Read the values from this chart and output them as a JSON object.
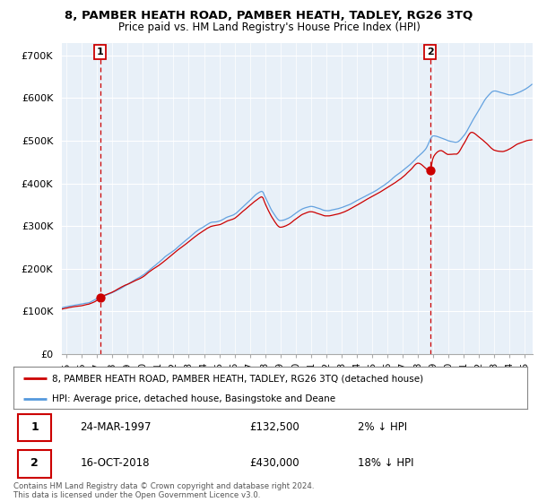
{
  "title": "8, PAMBER HEATH ROAD, PAMBER HEATH, TADLEY, RG26 3TQ",
  "subtitle": "Price paid vs. HM Land Registry's House Price Index (HPI)",
  "ylabel_ticks": [
    "£0",
    "£100K",
    "£200K",
    "£300K",
    "£400K",
    "£500K",
    "£600K",
    "£700K"
  ],
  "ytick_vals": [
    0,
    100000,
    200000,
    300000,
    400000,
    500000,
    600000,
    700000
  ],
  "ylim": [
    0,
    730000
  ],
  "xlim_start": 1994.7,
  "xlim_end": 2025.5,
  "hpi_color": "#5599dd",
  "price_color": "#cc0000",
  "dot_color": "#cc0000",
  "plot_bg": "#e8f0f8",
  "grid_color": "#ffffff",
  "legend_label_price": "8, PAMBER HEATH ROAD, PAMBER HEATH, TADLEY, RG26 3TQ (detached house)",
  "legend_label_hpi": "HPI: Average price, detached house, Basingstoke and Deane",
  "transaction1_date": "24-MAR-1997",
  "transaction1_price": 132500,
  "transaction1_pct": "2% ↓ HPI",
  "transaction1_x": 1997.21,
  "transaction2_date": "16-OCT-2018",
  "transaction2_price": 430000,
  "transaction2_pct": "18% ↓ HPI",
  "transaction2_x": 2018.79,
  "footer": "Contains HM Land Registry data © Crown copyright and database right 2024.\nThis data is licensed under the Open Government Licence v3.0.",
  "xtick_years": [
    1995,
    1996,
    1997,
    1998,
    1999,
    2000,
    2001,
    2002,
    2003,
    2004,
    2005,
    2006,
    2007,
    2008,
    2009,
    2010,
    2011,
    2012,
    2013,
    2014,
    2015,
    2016,
    2017,
    2018,
    2019,
    2020,
    2021,
    2022,
    2023,
    2024,
    2025
  ],
  "hpi_anchors_x": [
    1994.7,
    1995.0,
    1995.5,
    1996.0,
    1996.5,
    1997.0,
    1997.5,
    1998.0,
    1998.5,
    1999.0,
    1999.5,
    2000.0,
    2000.5,
    2001.0,
    2001.5,
    2002.0,
    2002.5,
    2003.0,
    2003.5,
    2004.0,
    2004.5,
    2005.0,
    2005.5,
    2006.0,
    2006.5,
    2007.0,
    2007.5,
    2007.8,
    2008.0,
    2008.5,
    2009.0,
    2009.5,
    2010.0,
    2010.5,
    2011.0,
    2011.5,
    2012.0,
    2012.5,
    2013.0,
    2013.5,
    2014.0,
    2014.5,
    2015.0,
    2015.5,
    2016.0,
    2016.5,
    2017.0,
    2017.5,
    2018.0,
    2018.5,
    2019.0,
    2019.5,
    2020.0,
    2020.5,
    2021.0,
    2021.5,
    2022.0,
    2022.5,
    2023.0,
    2023.5,
    2024.0,
    2024.5,
    2025.3
  ],
  "hpi_anchors_y": [
    108000,
    110000,
    113000,
    116000,
    120000,
    128000,
    135000,
    143000,
    152000,
    162000,
    172000,
    183000,
    198000,
    212000,
    228000,
    242000,
    258000,
    272000,
    287000,
    298000,
    308000,
    310000,
    318000,
    326000,
    342000,
    358000,
    373000,
    378000,
    365000,
    330000,
    310000,
    315000,
    328000,
    340000,
    345000,
    340000,
    335000,
    338000,
    342000,
    348000,
    358000,
    368000,
    378000,
    388000,
    400000,
    415000,
    428000,
    442000,
    460000,
    478000,
    510000,
    505000,
    498000,
    495000,
    510000,
    540000,
    570000,
    600000,
    615000,
    610000,
    605000,
    610000,
    625000
  ],
  "price_anchors_x": [
    1994.7,
    1995.0,
    1995.5,
    1996.0,
    1996.5,
    1997.0,
    1997.21,
    1997.5,
    1998.0,
    1998.5,
    1999.0,
    1999.5,
    2000.0,
    2000.5,
    2001.0,
    2001.5,
    2002.0,
    2002.5,
    2003.0,
    2003.5,
    2004.0,
    2004.5,
    2005.0,
    2005.5,
    2006.0,
    2006.5,
    2007.0,
    2007.5,
    2007.8,
    2008.0,
    2008.5,
    2009.0,
    2009.5,
    2010.0,
    2010.5,
    2011.0,
    2011.5,
    2012.0,
    2012.5,
    2013.0,
    2013.5,
    2014.0,
    2014.5,
    2015.0,
    2015.5,
    2016.0,
    2016.5,
    2017.0,
    2017.5,
    2018.0,
    2018.79,
    2019.0,
    2019.5,
    2020.0,
    2020.5,
    2021.0,
    2021.5,
    2022.0,
    2022.5,
    2023.0,
    2023.5,
    2024.0,
    2024.5,
    2025.3
  ],
  "price_anchors_y": [
    105000,
    107000,
    110000,
    113000,
    117000,
    125000,
    132500,
    138000,
    146000,
    155000,
    163000,
    172000,
    181000,
    195000,
    208000,
    222000,
    236000,
    250000,
    264000,
    278000,
    290000,
    300000,
    304000,
    312000,
    318000,
    333000,
    348000,
    362000,
    368000,
    352000,
    318000,
    298000,
    303000,
    316000,
    328000,
    333000,
    328000,
    323000,
    326000,
    330000,
    338000,
    348000,
    358000,
    368000,
    378000,
    390000,
    402000,
    415000,
    432000,
    448000,
    430000,
    462000,
    478000,
    468000,
    468000,
    492000,
    518000,
    505000,
    490000,
    475000,
    472000,
    478000,
    490000,
    500000
  ]
}
